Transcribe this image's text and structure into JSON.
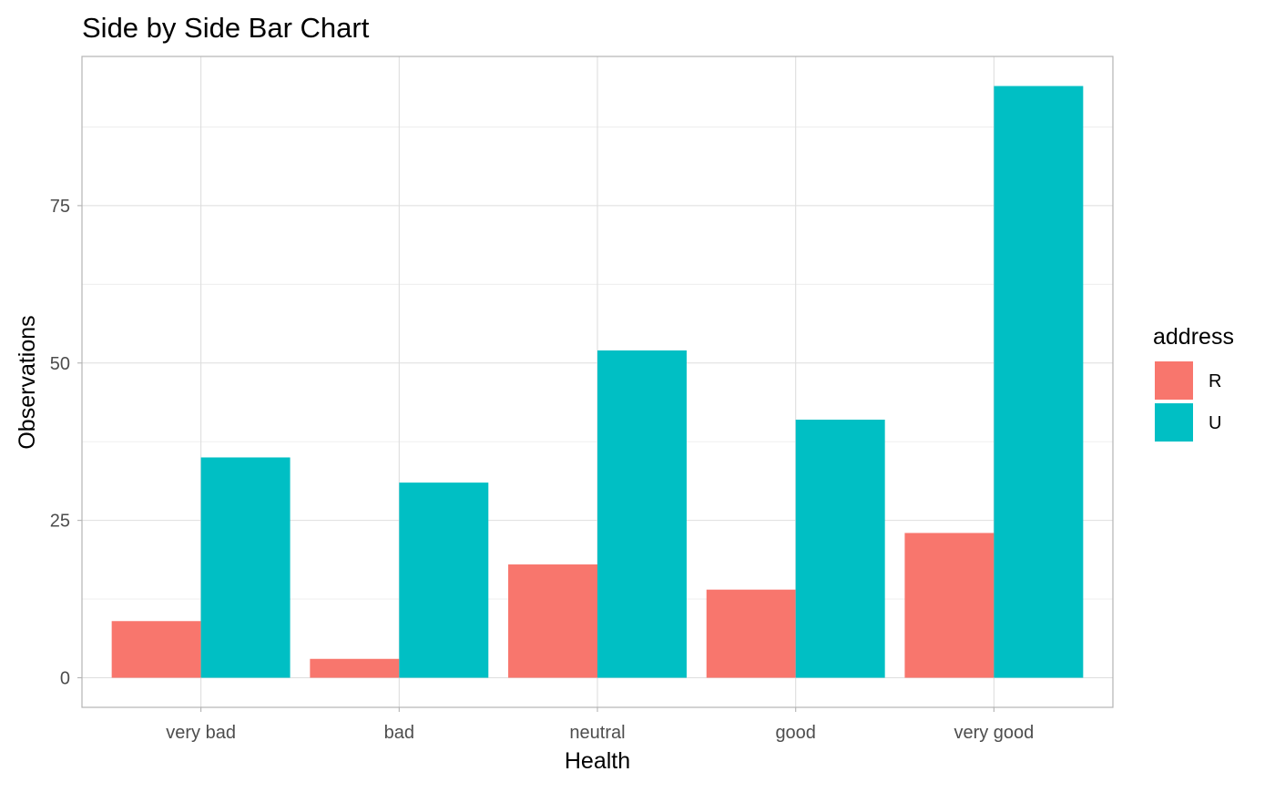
{
  "chart_data": {
    "type": "bar",
    "title": "Side by Side Bar Chart",
    "xlabel": "Health",
    "ylabel": "Observations",
    "categories": [
      "very bad",
      "bad",
      "neutral",
      "good",
      "very good"
    ],
    "series": [
      {
        "name": "R",
        "values": [
          9,
          3,
          18,
          14,
          23
        ],
        "color": "#F8766D"
      },
      {
        "name": "U",
        "values": [
          35,
          31,
          52,
          41,
          94
        ],
        "color": "#00BFC4"
      }
    ],
    "ylim": [
      -4.7,
      98.7
    ],
    "yticks": [
      0,
      25,
      50,
      75
    ],
    "yticks_minor": [
      12.5,
      37.5,
      62.5,
      87.5
    ],
    "grid": true,
    "legend": {
      "title": "address",
      "position": "right",
      "entries": [
        "R",
        "U"
      ]
    },
    "colors": {
      "panel_border": "#b3b3b3",
      "grid": "#dedede",
      "tick_label": "#4d4d4d"
    }
  }
}
